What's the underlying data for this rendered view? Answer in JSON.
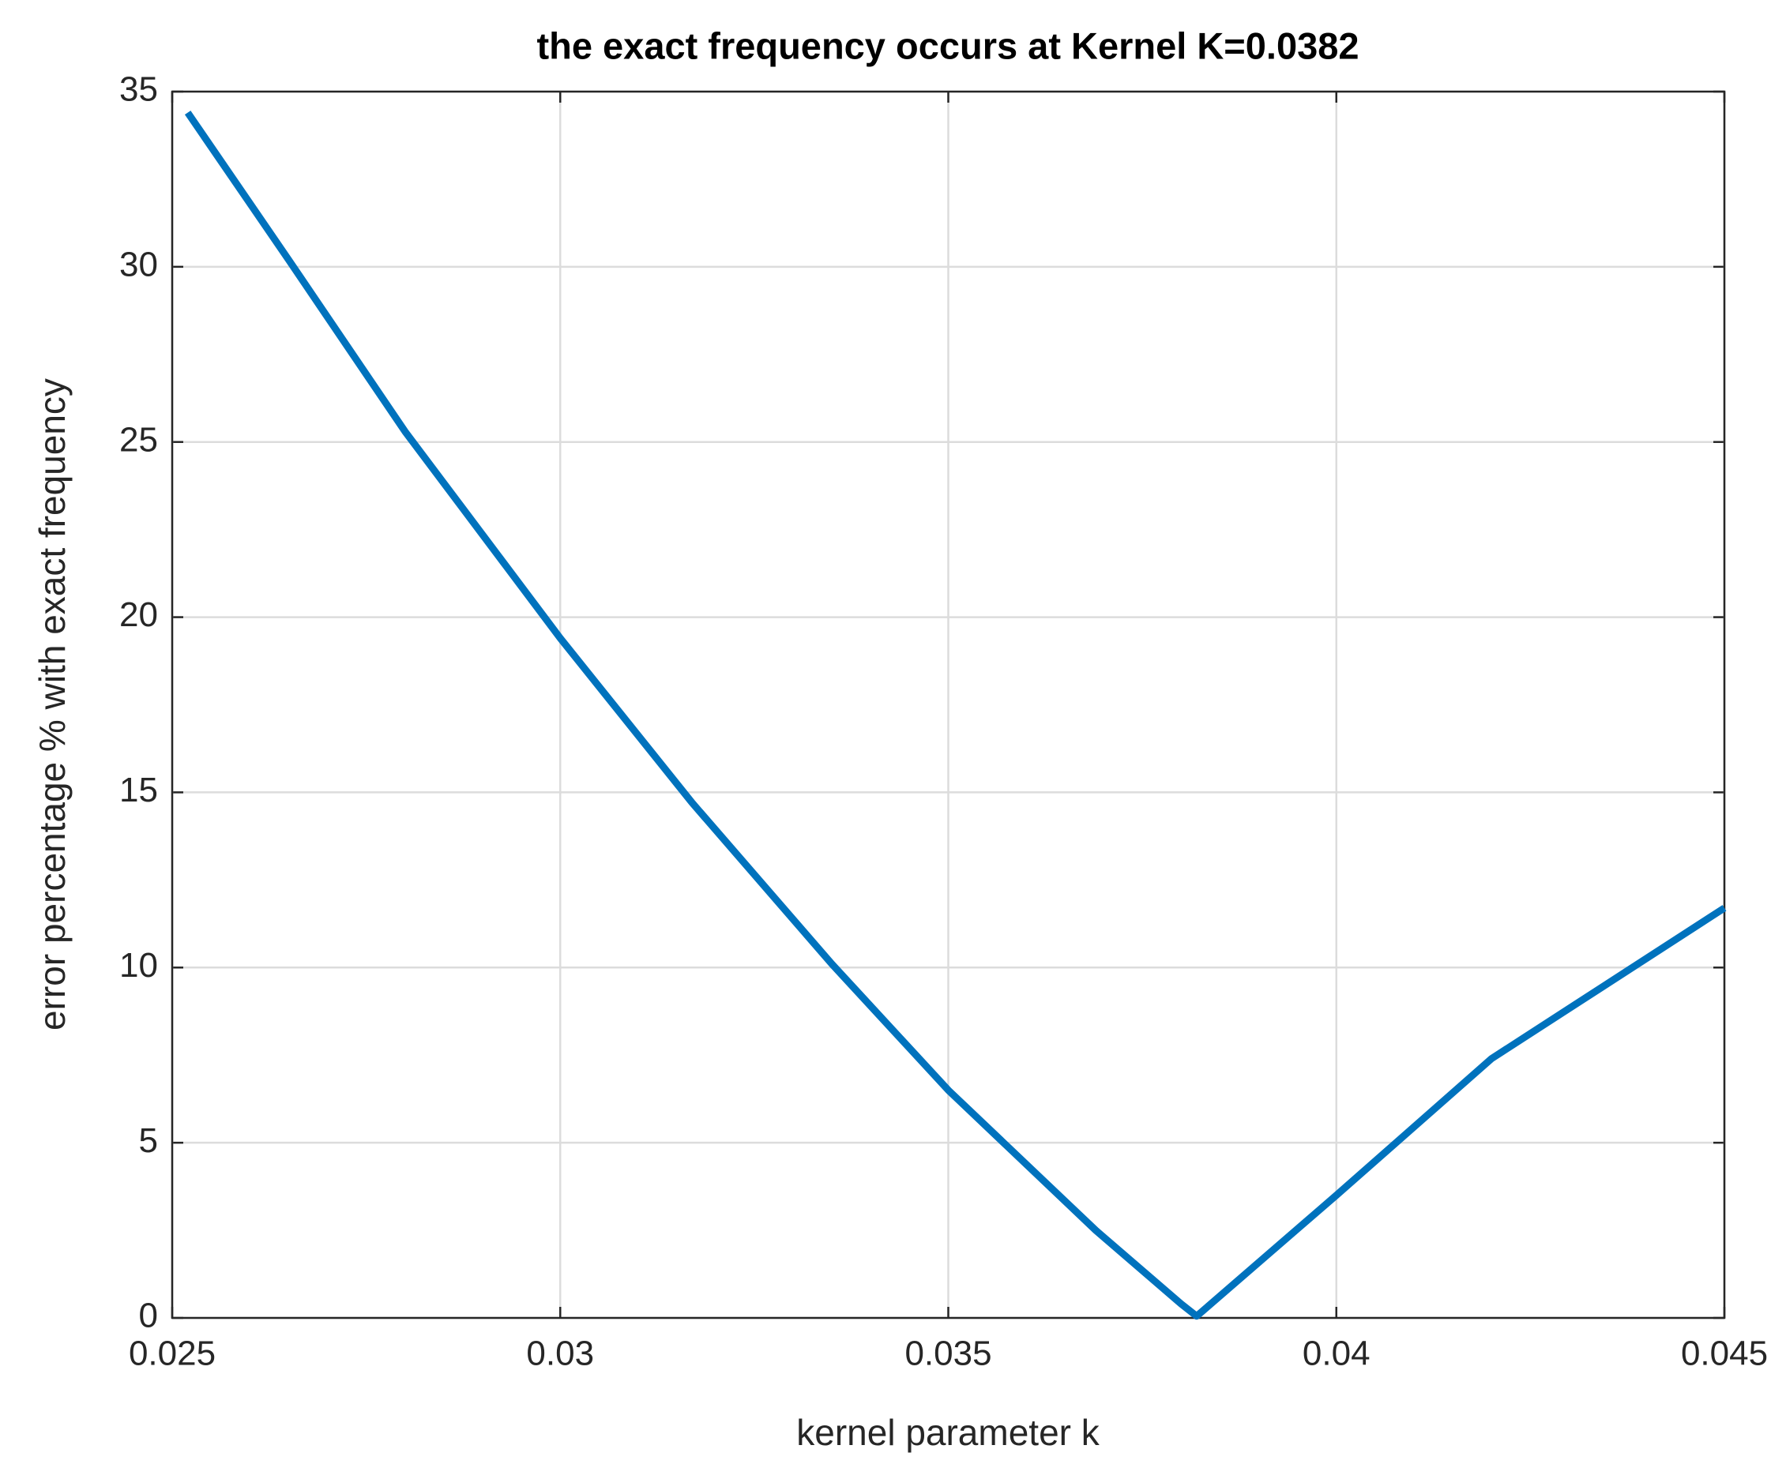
{
  "chart_data": {
    "type": "line",
    "title": "the exact frequency occurs at Kernel K=0.0382",
    "x_label": "kernel parameter  k",
    "y_label": "error percentage % with exact frequency",
    "x": [
      0.0252,
      0.0265,
      0.028,
      0.03,
      0.0317,
      0.0335,
      0.035,
      0.0369,
      0.038,
      0.0382,
      0.04,
      0.042,
      0.045
    ],
    "series": [
      {
        "name": "error",
        "color": "#0072bd",
        "values": [
          34.4,
          30.2,
          25.3,
          19.4,
          14.7,
          10.1,
          6.5,
          2.5,
          0.4,
          0.05,
          3.5,
          7.4,
          11.7
        ]
      }
    ],
    "xlim": [
      0.025,
      0.045
    ],
    "xticks": [
      0.025,
      0.03,
      0.035,
      0.04,
      0.045
    ],
    "ylim": [
      0,
      35
    ],
    "yticks": [
      0,
      5,
      10,
      15,
      20,
      25,
      30,
      35
    ],
    "grid": true
  }
}
